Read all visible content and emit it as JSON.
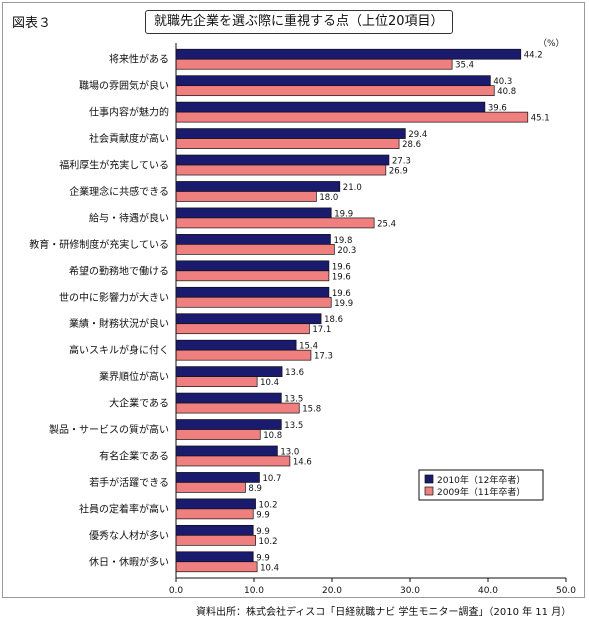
{
  "figure_label": "図表３",
  "unit_label": "（%）",
  "source_note": "資料出所：株式会社ディスコ「日経就職ナビ 学生モニター調査」（2010 年 11 月）",
  "colors": {
    "series_2010": "#1a1a6e",
    "series_2009": "#f08080"
  },
  "chart_data": {
    "type": "bar",
    "orientation": "horizontal",
    "title": "就職先企業を選ぶ際に重視する点（上位20項目）",
    "xlabel": "",
    "ylabel": "",
    "xlim": [
      0,
      50
    ],
    "xticks": [
      "0.0",
      "10.0",
      "20.0",
      "30.0",
      "40.0",
      "50.0"
    ],
    "grid": false,
    "legend_position": "bottom-right",
    "categories": [
      "将来性がある",
      "職場の雰囲気が良い",
      "仕事内容が魅力的",
      "社会貢献度が高い",
      "福利厚生が充実している",
      "企業理念に共感できる",
      "給与・待遇が良い",
      "教育・研修制度が充実している",
      "希望の勤務地で働ける",
      "世の中に影響力が大きい",
      "業績・財務状況が良い",
      "高いスキルが身に付く",
      "業界順位が高い",
      "大企業である",
      "製品・サービスの質が高い",
      "有名企業である",
      "若手が活躍できる",
      "社員の定着率が高い",
      "優秀な人材が多い",
      "休日・休暇が多い"
    ],
    "series": [
      {
        "name": "2010年（12年卒者）",
        "values": [
          44.2,
          40.3,
          39.6,
          29.4,
          27.3,
          21.0,
          19.9,
          19.8,
          19.6,
          19.6,
          18.6,
          15.4,
          13.6,
          13.5,
          13.5,
          13.0,
          10.7,
          10.2,
          9.9,
          9.9
        ],
        "labels": [
          "44.2",
          "40.3",
          "39.6",
          "29.4",
          "27.3",
          "21.0",
          "19.9",
          "19.8",
          "19.6",
          "19.6",
          "18.6",
          "15.4",
          "13.6",
          "13.5",
          "13.5",
          "13.0",
          "10.7",
          "10.2",
          "9.9",
          "9.9"
        ]
      },
      {
        "name": "2009年（11年卒者）",
        "values": [
          35.4,
          40.8,
          45.1,
          28.6,
          26.9,
          18.0,
          25.4,
          20.3,
          19.6,
          19.9,
          17.1,
          17.3,
          10.4,
          15.8,
          10.8,
          14.6,
          8.9,
          9.9,
          10.2,
          10.4
        ],
        "labels": [
          "35.4",
          "40.8",
          "45.1",
          "28.6",
          "26.9",
          "18.0",
          "25.4",
          "20.3",
          "19.6",
          "19.9",
          "17.1",
          "17.3",
          "10.4",
          "15.8",
          "10.8",
          "14.6",
          "8.9",
          "9.9",
          "10.2",
          "10.4"
        ]
      }
    ]
  }
}
